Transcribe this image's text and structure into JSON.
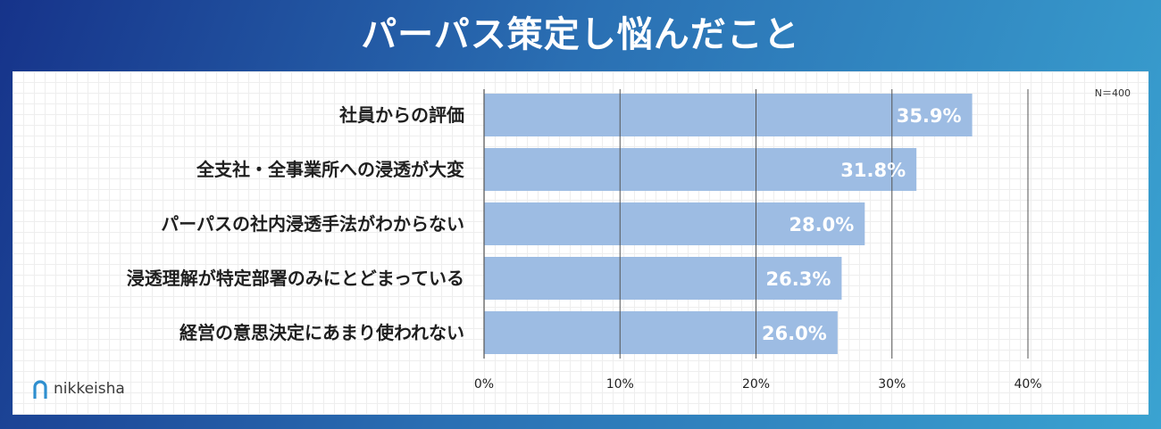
{
  "title": "パーパス策定し悩んだこと",
  "n_label": "N＝400",
  "logo_text": "nikkeisha",
  "colors": {
    "bar": "#9dbce3",
    "axis": "#555555",
    "value_text": "#ffffff"
  },
  "chart_data": {
    "type": "bar",
    "orientation": "horizontal",
    "categories": [
      "社員からの評価",
      "全支社・全事業所への浸透が大変",
      "パーパスの社内浸透手法がわからない",
      "浸透理解が特定部署のみにとどまっている",
      "経営の意思決定にあまり使われない"
    ],
    "values": [
      35.9,
      31.8,
      28.0,
      26.3,
      26.0
    ],
    "value_labels": [
      "35.9%",
      "31.8%",
      "28.0%",
      "26.3%",
      "26.0%"
    ],
    "xlim": [
      0,
      40
    ],
    "xticks": [
      0,
      10,
      20,
      30,
      40
    ],
    "xtick_labels": [
      "0%",
      "10%",
      "20%",
      "30%",
      "40%"
    ],
    "grid": "vertical lines at ticks",
    "legend": "none"
  }
}
